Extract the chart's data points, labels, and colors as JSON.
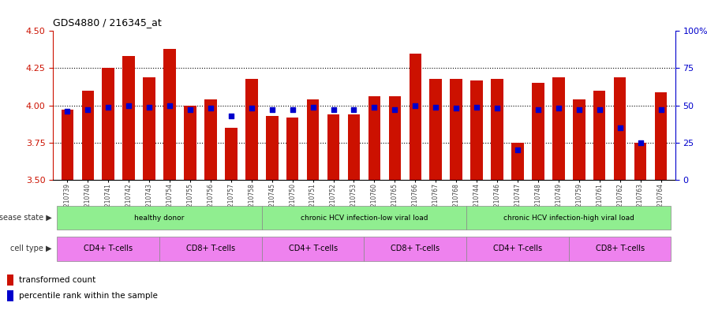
{
  "title": "GDS4880 / 216345_at",
  "samples": [
    "GSM1210739",
    "GSM1210740",
    "GSM1210741",
    "GSM1210742",
    "GSM1210743",
    "GSM1210754",
    "GSM1210755",
    "GSM1210756",
    "GSM1210757",
    "GSM1210758",
    "GSM1210745",
    "GSM1210750",
    "GSM1210751",
    "GSM1210752",
    "GSM1210753",
    "GSM1210760",
    "GSM1210765",
    "GSM1210766",
    "GSM1210767",
    "GSM1210768",
    "GSM1210744",
    "GSM1210746",
    "GSM1210747",
    "GSM1210748",
    "GSM1210749",
    "GSM1210759",
    "GSM1210761",
    "GSM1210762",
    "GSM1210763",
    "GSM1210764"
  ],
  "transformed_count": [
    3.97,
    4.1,
    4.25,
    4.33,
    4.19,
    4.38,
    4.0,
    4.04,
    3.85,
    4.18,
    3.93,
    3.92,
    4.04,
    3.94,
    3.94,
    4.06,
    4.06,
    4.35,
    4.18,
    4.18,
    4.17,
    4.18,
    3.75,
    4.15,
    4.19,
    4.04,
    4.1,
    4.19,
    3.75,
    4.09
  ],
  "percentile_rank": [
    46,
    47,
    49,
    50,
    49,
    50,
    47,
    48,
    43,
    48,
    47,
    47,
    49,
    47,
    47,
    49,
    47,
    50,
    49,
    48,
    49,
    48,
    20,
    47,
    48,
    47,
    47,
    35,
    25,
    47
  ],
  "ylim_left": [
    3.5,
    4.5
  ],
  "ylim_right": [
    0,
    100
  ],
  "yticks_left": [
    3.5,
    3.75,
    4.0,
    4.25,
    4.5
  ],
  "yticks_right": [
    0,
    25,
    50,
    75,
    100
  ],
  "ytick_labels_right": [
    "0",
    "25",
    "50",
    "75",
    "100%"
  ],
  "bar_color": "#CC1100",
  "dot_color": "#0000CC",
  "left_axis_color": "#CC1100",
  "right_axis_color": "#0000CC",
  "bg_color": "#FFFFFF",
  "ds_groups": [
    {
      "label": "healthy donor",
      "start": 0,
      "end": 9
    },
    {
      "label": "chronic HCV infection-low viral load",
      "start": 10,
      "end": 19
    },
    {
      "label": "chronic HCV infection-high viral load",
      "start": 20,
      "end": 29
    }
  ],
  "ct_groups": [
    {
      "label": "CD4+ T-cells",
      "start": 0,
      "end": 4
    },
    {
      "label": "CD8+ T-cells",
      "start": 5,
      "end": 9
    },
    {
      "label": "CD4+ T-cells",
      "start": 10,
      "end": 14
    },
    {
      "label": "CD8+ T-cells",
      "start": 15,
      "end": 19
    },
    {
      "label": "CD4+ T-cells",
      "start": 20,
      "end": 24
    },
    {
      "label": "CD8+ T-cells",
      "start": 25,
      "end": 29
    }
  ],
  "ds_color": "#90EE90",
  "ct_color_cd4": "#EE82EE",
  "ct_color_cd8": "#EE82EE",
  "ds_label_text": "disease state ▶",
  "ct_label_text": "cell type ▶"
}
